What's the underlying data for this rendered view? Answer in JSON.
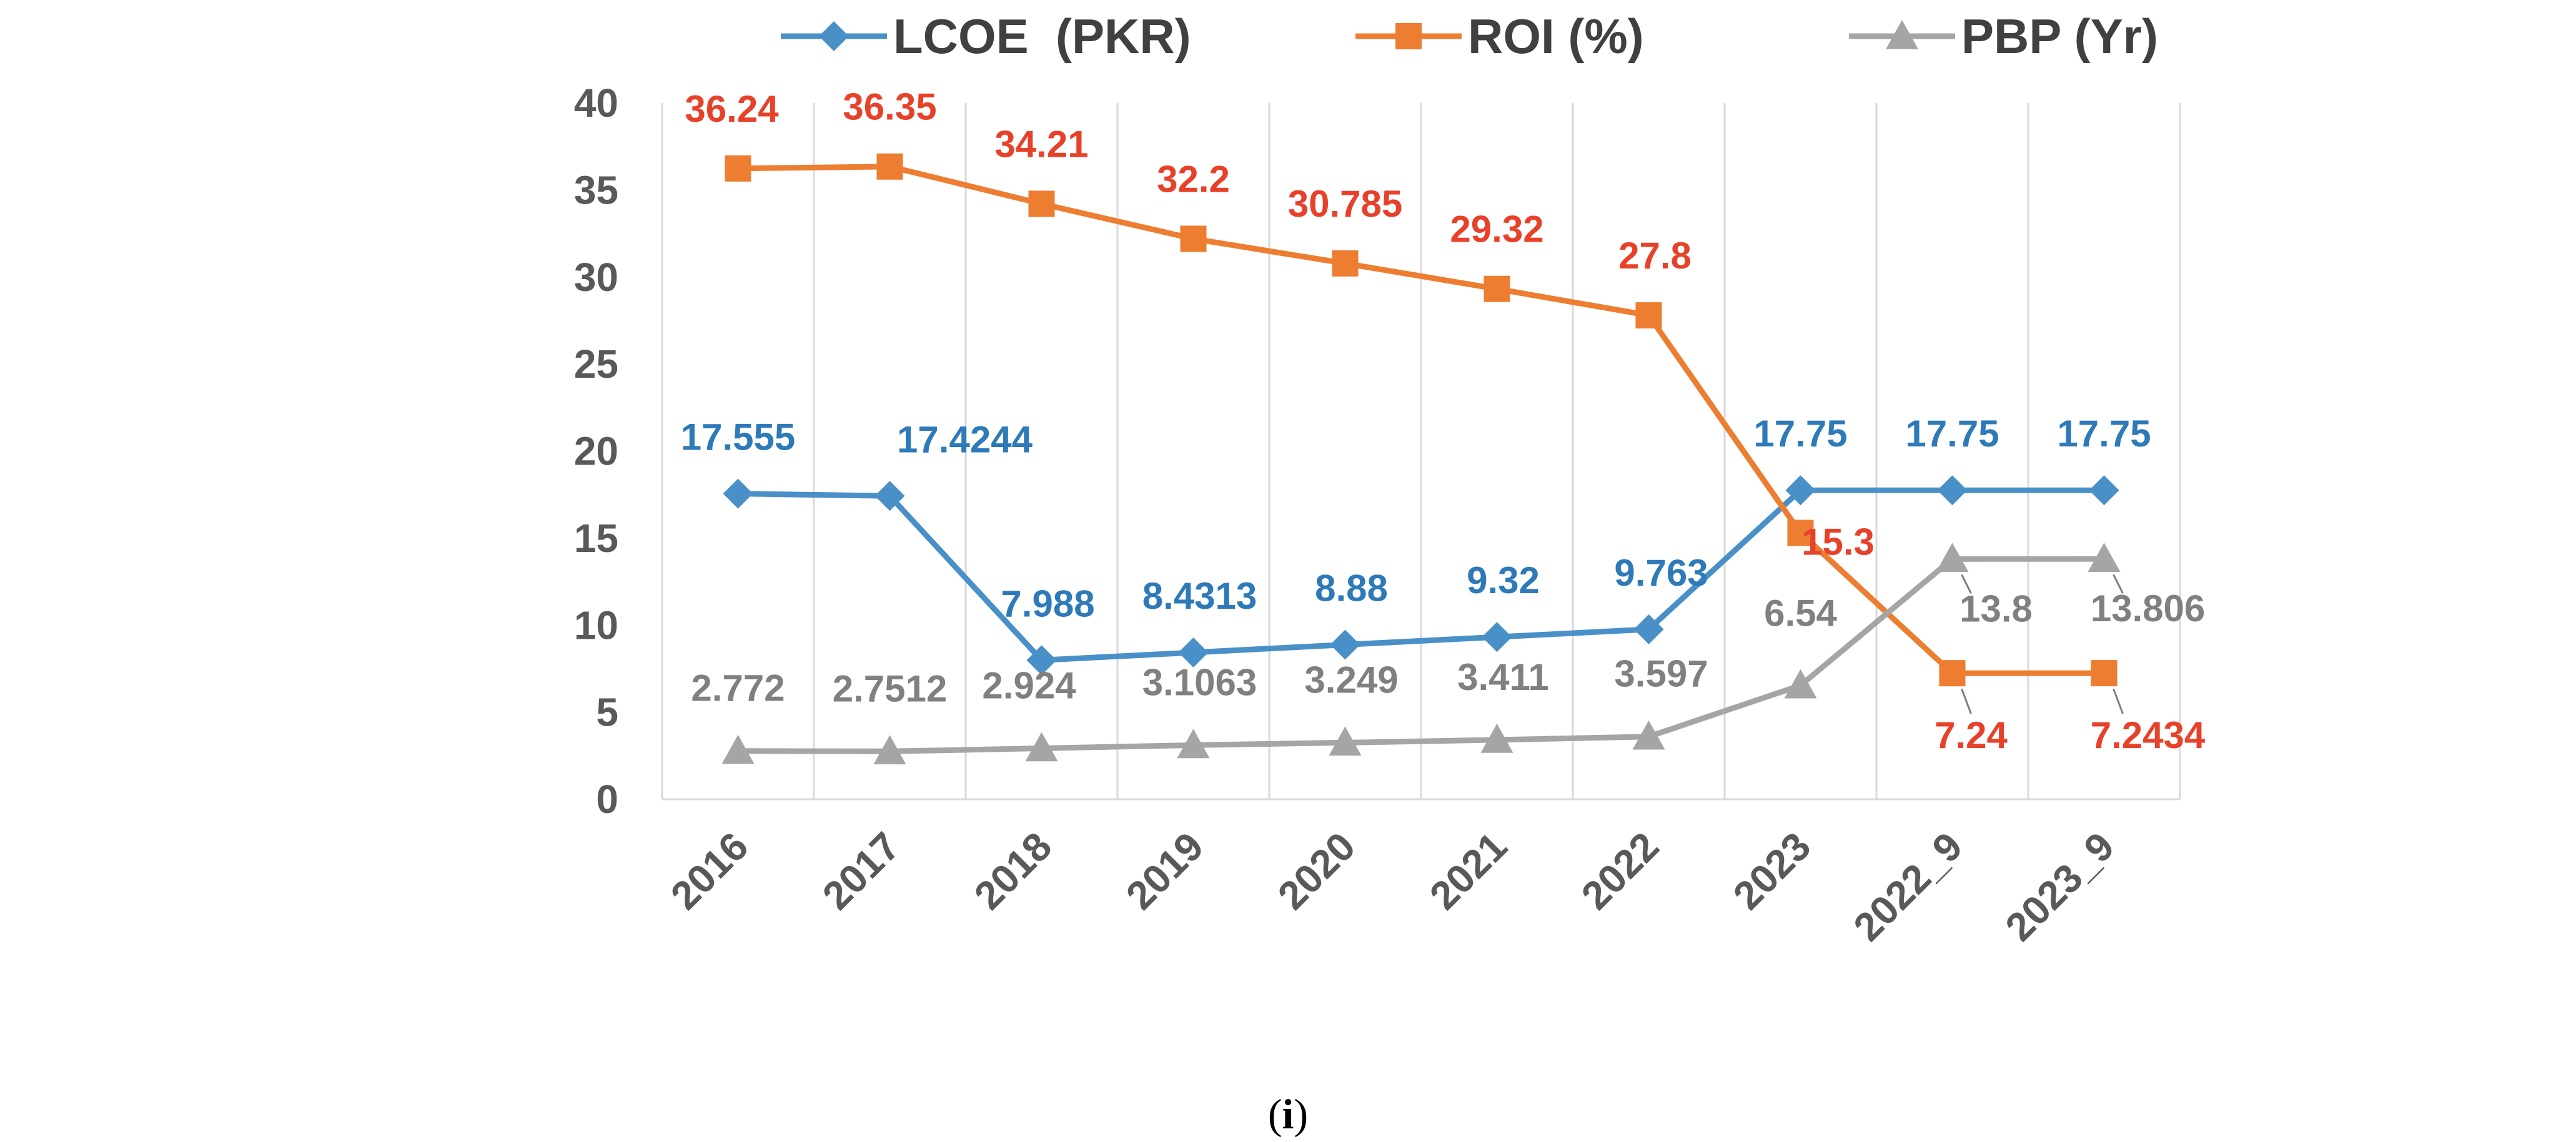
{
  "chart_data": {
    "type": "line",
    "categories": [
      "2016",
      "2017",
      "2018",
      "2019",
      "2020",
      "2021",
      "2022",
      "2023",
      "2022_9",
      "2023_9"
    ],
    "ylim": [
      0,
      40
    ],
    "yticks": [
      0,
      5,
      10,
      15,
      20,
      25,
      30,
      35,
      40
    ],
    "grid": "vertical",
    "legend_position": "top",
    "series": [
      {
        "name": "LCOE  (PKR)",
        "color": "#4a90c8",
        "marker": "diamond",
        "values": [
          17.555,
          17.4244,
          7.988,
          8.4313,
          8.88,
          9.32,
          9.763,
          17.75,
          17.75,
          17.75
        ],
        "labels": [
          "17.555",
          "17.4244",
          "7.988",
          "8.4313",
          "8.88",
          "9.32",
          "9.763",
          "17.75",
          "17.75",
          "17.75"
        ],
        "label_color": "#2e7ab8"
      },
      {
        "name": "ROI (%)",
        "color": "#ed7d31",
        "marker": "square",
        "values": [
          36.24,
          36.35,
          34.21,
          32.2,
          30.785,
          29.32,
          27.8,
          15.3,
          7.24,
          7.2434
        ],
        "labels": [
          "36.24",
          "36.35",
          "34.21",
          "32.2",
          "30.785",
          "29.32",
          "27.8",
          "15.3",
          "7.24",
          "7.2434"
        ],
        "label_color": "#e8412a"
      },
      {
        "name": "PBP (Yr)",
        "color": "#a5a5a5",
        "marker": "triangle",
        "values": [
          2.772,
          2.7512,
          2.924,
          3.1063,
          3.249,
          3.411,
          3.597,
          6.54,
          13.8,
          13.806
        ],
        "labels": [
          "2.772",
          "2.7512",
          "2.924",
          "3.1063",
          "3.249",
          "3.411",
          "3.597",
          "6.54",
          "13.8",
          "13.806"
        ],
        "label_color": "#808080"
      }
    ]
  },
  "caption": {
    "open": "(",
    "letter": "i",
    "close": ")"
  }
}
